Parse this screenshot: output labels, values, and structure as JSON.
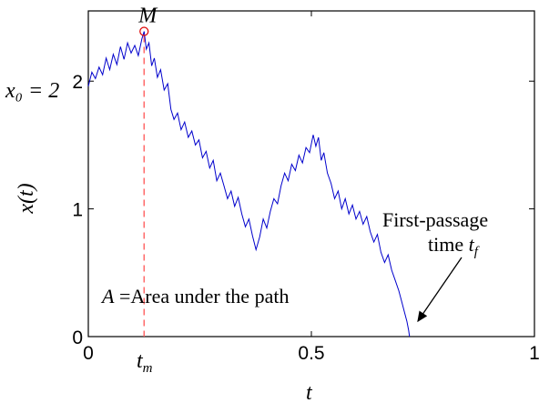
{
  "chart_data": {
    "type": "line",
    "xlabel": "t",
    "ylabel": "x(t)",
    "xlim": [
      0,
      1
    ],
    "ylim": [
      0,
      2.55
    ],
    "x_ticks": [
      "0",
      "0.5",
      "1"
    ],
    "y_ticks": [
      "0",
      "1",
      "2"
    ],
    "grid": false,
    "colors": {
      "path": "#0000cc",
      "marker": "#dd0000",
      "dashed": "#ff6060"
    },
    "annotations": {
      "max_label": "M",
      "x0_label": "x₀ = 2",
      "tm_label": "t_m",
      "area_label": "A =Area under the path",
      "fpt_line1": "First-passage",
      "fpt_line2": "time t_f"
    },
    "maximum": {
      "t": 0.125,
      "x": 2.39
    },
    "first_passage": {
      "t": 0.72,
      "x": 0
    },
    "series": [
      {
        "values": [
          [
            0.0,
            1.96
          ],
          [
            0.008,
            2.07
          ],
          [
            0.016,
            2.02
          ],
          [
            0.024,
            2.11
          ],
          [
            0.032,
            2.05
          ],
          [
            0.04,
            2.18
          ],
          [
            0.048,
            2.09
          ],
          [
            0.056,
            2.21
          ],
          [
            0.064,
            2.13
          ],
          [
            0.072,
            2.27
          ],
          [
            0.08,
            2.17
          ],
          [
            0.088,
            2.3
          ],
          [
            0.096,
            2.22
          ],
          [
            0.104,
            2.28
          ],
          [
            0.112,
            2.2
          ],
          [
            0.12,
            2.33
          ],
          [
            0.125,
            2.39
          ],
          [
            0.13,
            2.25
          ],
          [
            0.136,
            2.3
          ],
          [
            0.142,
            2.12
          ],
          [
            0.148,
            2.18
          ],
          [
            0.155,
            2.03
          ],
          [
            0.162,
            2.09
          ],
          [
            0.17,
            1.93
          ],
          [
            0.178,
            1.98
          ],
          [
            0.185,
            1.78
          ],
          [
            0.192,
            1.7
          ],
          [
            0.2,
            1.75
          ],
          [
            0.208,
            1.62
          ],
          [
            0.216,
            1.68
          ],
          [
            0.224,
            1.56
          ],
          [
            0.232,
            1.61
          ],
          [
            0.24,
            1.5
          ],
          [
            0.248,
            1.54
          ],
          [
            0.256,
            1.4
          ],
          [
            0.264,
            1.45
          ],
          [
            0.272,
            1.32
          ],
          [
            0.28,
            1.38
          ],
          [
            0.288,
            1.22
          ],
          [
            0.296,
            1.28
          ],
          [
            0.304,
            1.18
          ],
          [
            0.312,
            1.08
          ],
          [
            0.32,
            1.14
          ],
          [
            0.328,
            1.02
          ],
          [
            0.336,
            1.09
          ],
          [
            0.344,
            0.96
          ],
          [
            0.352,
            0.86
          ],
          [
            0.36,
            0.92
          ],
          [
            0.368,
            0.79
          ],
          [
            0.376,
            0.68
          ],
          [
            0.384,
            0.78
          ],
          [
            0.392,
            0.92
          ],
          [
            0.4,
            0.85
          ],
          [
            0.408,
            0.98
          ],
          [
            0.416,
            1.08
          ],
          [
            0.424,
            1.04
          ],
          [
            0.432,
            1.18
          ],
          [
            0.44,
            1.28
          ],
          [
            0.448,
            1.22
          ],
          [
            0.456,
            1.35
          ],
          [
            0.464,
            1.3
          ],
          [
            0.472,
            1.42
          ],
          [
            0.48,
            1.36
          ],
          [
            0.488,
            1.48
          ],
          [
            0.496,
            1.44
          ],
          [
            0.504,
            1.58
          ],
          [
            0.51,
            1.49
          ],
          [
            0.516,
            1.56
          ],
          [
            0.522,
            1.38
          ],
          [
            0.528,
            1.44
          ],
          [
            0.536,
            1.28
          ],
          [
            0.544,
            1.2
          ],
          [
            0.552,
            1.08
          ],
          [
            0.56,
            1.14
          ],
          [
            0.568,
            1.0
          ],
          [
            0.576,
            1.08
          ],
          [
            0.584,
            0.96
          ],
          [
            0.592,
            1.03
          ],
          [
            0.6,
            0.92
          ],
          [
            0.608,
            0.98
          ],
          [
            0.616,
            0.88
          ],
          [
            0.624,
            0.94
          ],
          [
            0.632,
            0.82
          ],
          [
            0.64,
            0.74
          ],
          [
            0.648,
            0.8
          ],
          [
            0.656,
            0.66
          ],
          [
            0.664,
            0.58
          ],
          [
            0.672,
            0.64
          ],
          [
            0.68,
            0.52
          ],
          [
            0.688,
            0.44
          ],
          [
            0.696,
            0.36
          ],
          [
            0.702,
            0.28
          ],
          [
            0.708,
            0.2
          ],
          [
            0.714,
            0.12
          ],
          [
            0.718,
            0.05
          ],
          [
            0.72,
            0.0
          ]
        ]
      }
    ]
  }
}
